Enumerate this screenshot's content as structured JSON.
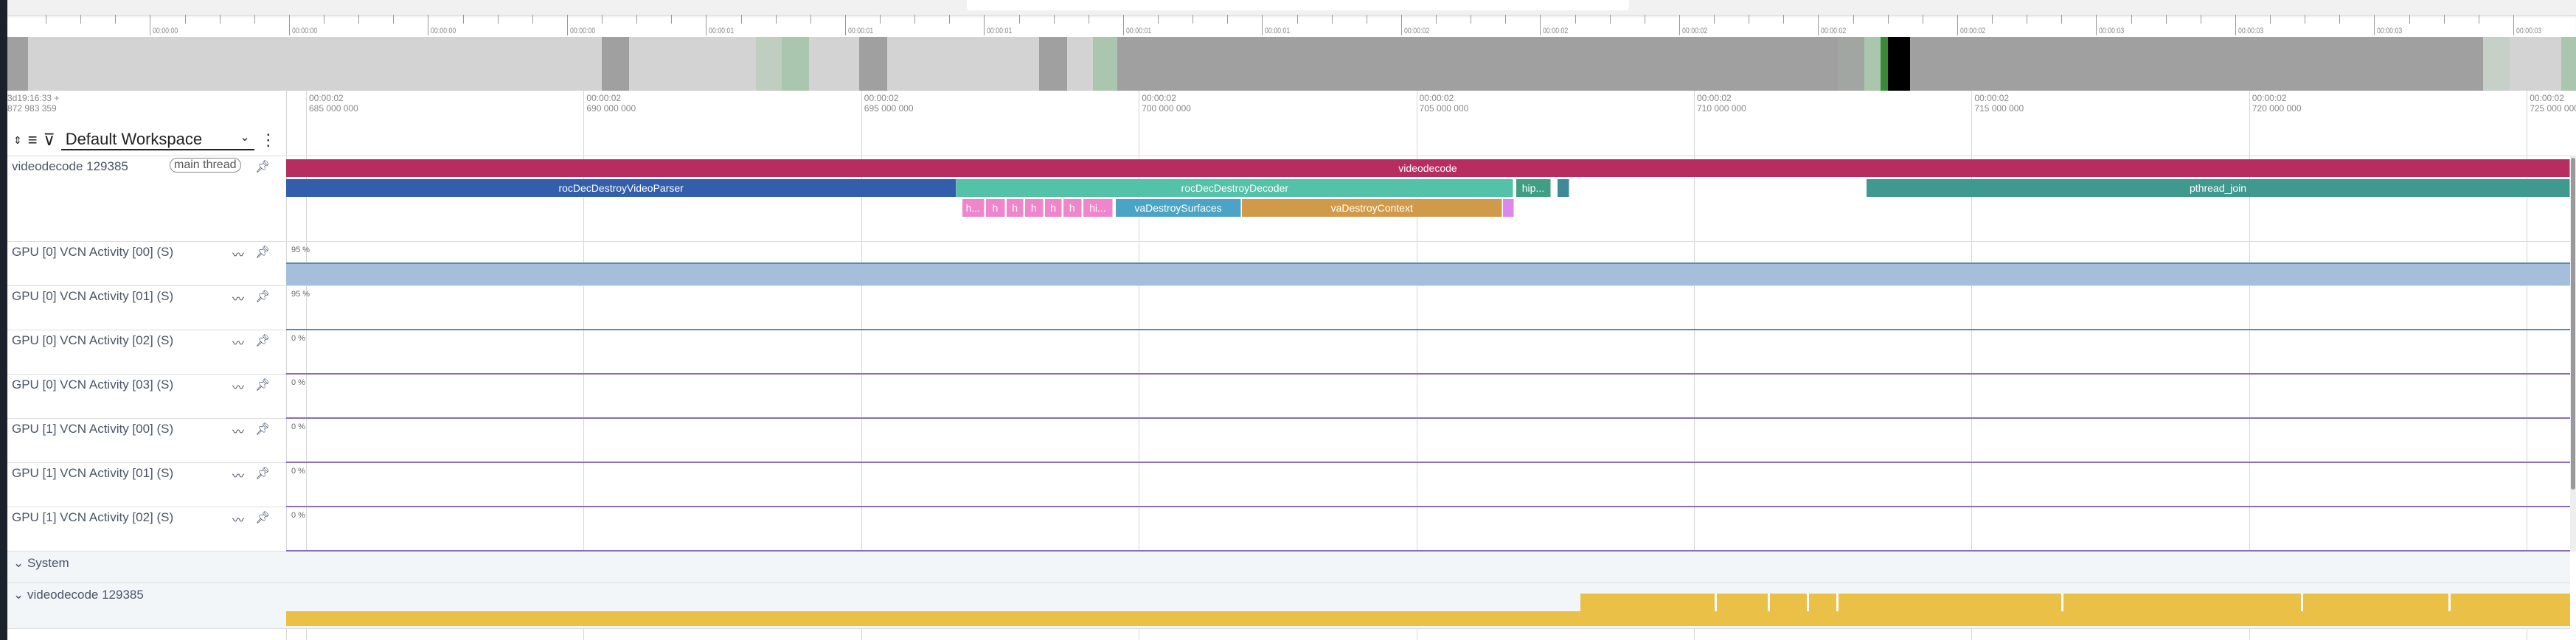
{
  "overview_ruler": {
    "labels": [
      "00:00:00",
      "00:00:00",
      "00:00:00",
      "00:00:00",
      "00:00:01",
      "00:00:01",
      "00:00:01",
      "00:00:01",
      "00:00:01",
      "00:00:02",
      "00:00:02",
      "00:00:02",
      "00:00:02",
      "00:00:02",
      "00:00:03",
      "00:00:03",
      "00:00:03",
      "00:00:03"
    ]
  },
  "timeline": {
    "offset_line1": "3d19:16:33 +",
    "offset_line2": "872 983 359",
    "ticks": [
      {
        "ms": 685,
        "l1": "00:00:02",
        "l2": "685 000 000"
      },
      {
        "ms": 690,
        "l1": "00:00:02",
        "l2": "690 000 000"
      },
      {
        "ms": 695,
        "l1": "00:00:02",
        "l2": "695 000 000"
      },
      {
        "ms": 700,
        "l1": "00:00:02",
        "l2": "700 000 000"
      },
      {
        "ms": 705,
        "l1": "00:00:02",
        "l2": "705 000 000"
      },
      {
        "ms": 710,
        "l1": "00:00:02",
        "l2": "710 000 000"
      },
      {
        "ms": 715,
        "l1": "00:00:02",
        "l2": "715 000 000"
      },
      {
        "ms": 720,
        "l1": "00:00:02",
        "l2": "720 000 000"
      },
      {
        "ms": 725,
        "l1": "00:00:02",
        "l2": "725 000 000"
      }
    ]
  },
  "workspace": {
    "name": "Default Workspace",
    "icons": [
      "expand-collapse-icon",
      "sort-icon",
      "filter-icon",
      "chevron-down-icon",
      "more-vert-icon"
    ]
  },
  "thread_track": {
    "name": "videodecode 129385",
    "badge": "main thread",
    "slices": [
      {
        "name": "videodecode",
        "start": 684.6,
        "end": 725.8,
        "depth": 0,
        "color": "#b82d60"
      },
      {
        "name": "rocDecDestroyVideoParser",
        "start": 684.6,
        "end": 696.72,
        "depth": 1,
        "color": "#335eab"
      },
      {
        "name": "rocDecDestroyDecoder",
        "start": 696.72,
        "end": 706.75,
        "depth": 1,
        "color": "#53c2a8"
      },
      {
        "name": "hip...",
        "start": 706.8,
        "end": 707.42,
        "depth": 1,
        "color": "#3f9f85"
      },
      {
        "name": "",
        "start": 707.54,
        "end": 707.75,
        "depth": 1,
        "color": "#3e8a98"
      },
      {
        "name": "pthread_join",
        "start": 713.11,
        "end": 725.8,
        "depth": 1,
        "color": "#3f998f"
      },
      {
        "name": "h...",
        "start": 696.82,
        "end": 697.22,
        "depth": 2,
        "color": "#ef86cc"
      },
      {
        "name": "h",
        "start": 697.25,
        "end": 697.59,
        "depth": 2,
        "color": "#ef86cc"
      },
      {
        "name": "h",
        "start": 697.62,
        "end": 697.93,
        "depth": 2,
        "color": "#ef86cc"
      },
      {
        "name": "h",
        "start": 697.95,
        "end": 698.28,
        "depth": 2,
        "color": "#ef86cc"
      },
      {
        "name": "h",
        "start": 698.31,
        "end": 698.62,
        "depth": 2,
        "color": "#ef86cc"
      },
      {
        "name": "h",
        "start": 698.64,
        "end": 698.97,
        "depth": 2,
        "color": "#ef86cc"
      },
      {
        "name": "hi...",
        "start": 699.0,
        "end": 699.53,
        "depth": 2,
        "color": "#ef86cc"
      },
      {
        "name": "vaDestroySurfaces",
        "start": 699.59,
        "end": 701.84,
        "depth": 2,
        "color": "#4ba4c5"
      },
      {
        "name": "vaDestroyContext",
        "start": 701.86,
        "end": 706.55,
        "depth": 2,
        "color": "#d19a4a"
      },
      {
        "name": "",
        "start": 706.56,
        "end": 706.76,
        "depth": 2,
        "color": "#dc86ee"
      }
    ]
  },
  "counter_tracks": [
    {
      "name": "GPU [0] VCN Activity [00] (S)",
      "max_label": "95 %",
      "filled": true,
      "color": "#5b87b8"
    },
    {
      "name": "GPU [0] VCN Activity [01] (S)",
      "max_label": "95 %",
      "filled": false,
      "color": "#5b87b8"
    },
    {
      "name": "GPU [0] VCN Activity [02] (S)",
      "max_label": "0 %",
      "filled": false,
      "color": "#8a6cc0"
    },
    {
      "name": "GPU [0] VCN Activity [03] (S)",
      "max_label": "0 %",
      "filled": false,
      "color": "#8a6cc0"
    },
    {
      "name": "GPU [1] VCN Activity [00] (S)",
      "max_label": "0 %",
      "filled": false,
      "color": "#8a6cc0"
    },
    {
      "name": "GPU [1] VCN Activity [01] (S)",
      "max_label": "0 %",
      "filled": false,
      "color": "#8a6cc0"
    },
    {
      "name": "GPU [1] VCN Activity [02] (S)",
      "max_label": "0 %",
      "filled": false,
      "color": "#8a6cc0"
    }
  ],
  "groups": [
    {
      "name": "System"
    },
    {
      "name": "videodecode 129385",
      "activity_color": "#ebc046",
      "busy_from_ms": 707.95
    }
  ]
}
